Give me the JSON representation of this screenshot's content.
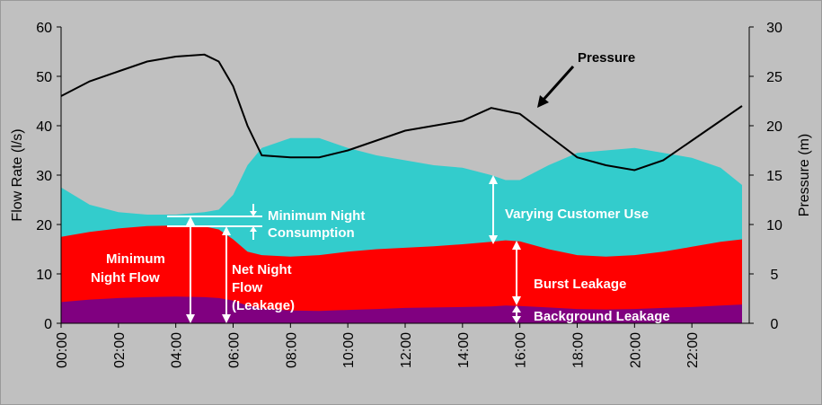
{
  "chart_data": {
    "type": "area",
    "title": "",
    "xlabel": "",
    "ylabel": "Flow Rate (l/s)",
    "y2label": "Pressure (m)",
    "ylim": [
      0,
      60
    ],
    "y2lim": [
      0,
      30
    ],
    "yticks": [
      "0",
      "10",
      "20",
      "30",
      "40",
      "50",
      "60"
    ],
    "y2ticks": [
      "0",
      "5",
      "10",
      "15",
      "20",
      "25",
      "30"
    ],
    "xticks": [
      "00:00",
      "02:00",
      "04:00",
      "06:00",
      "08:00",
      "10:00",
      "12:00",
      "14:00",
      "16:00",
      "18:00",
      "20:00",
      "22:00"
    ],
    "x_hours": [
      0,
      1,
      2,
      3,
      4,
      5,
      5.5,
      6,
      6.5,
      7,
      8,
      9,
      10,
      11,
      12,
      13,
      14,
      15,
      15.5,
      16,
      17,
      18,
      19,
      20,
      21,
      22,
      23,
      23.75
    ],
    "series": [
      {
        "name": "Background Leakage",
        "color": "#800080",
        "values": [
          4.3,
          4.8,
          5.1,
          5.3,
          5.4,
          5.3,
          5.1,
          4.6,
          3.6,
          3.0,
          2.6,
          2.5,
          2.7,
          2.9,
          3.1,
          3.2,
          3.3,
          3.4,
          3.6,
          3.5,
          3.2,
          2.9,
          2.8,
          2.9,
          3.1,
          3.3,
          3.6,
          3.8
        ]
      },
      {
        "name": "Burst Leakage",
        "color": "#ff0000",
        "values": [
          17.5,
          18.5,
          19.2,
          19.7,
          19.8,
          19.6,
          19.0,
          17.0,
          14.5,
          13.8,
          13.5,
          13.8,
          14.5,
          15.0,
          15.3,
          15.6,
          16.0,
          16.5,
          16.8,
          16.6,
          15.0,
          13.8,
          13.5,
          13.8,
          14.5,
          15.5,
          16.5,
          17.0
        ]
      },
      {
        "name": "Varying Customer Use",
        "color": "#33cccc",
        "values": [
          27.5,
          24.0,
          22.5,
          22.0,
          22.0,
          22.5,
          23.0,
          26.0,
          32.0,
          35.5,
          37.5,
          37.5,
          35.5,
          34.0,
          33.0,
          32.0,
          31.5,
          30.0,
          29.0,
          29.0,
          32.0,
          34.5,
          35.0,
          35.5,
          34.5,
          33.5,
          31.5,
          28.0
        ]
      },
      {
        "name": "Pressure",
        "color": "#000000",
        "axis": "y2",
        "values": [
          23.0,
          24.5,
          25.5,
          26.5,
          27.0,
          27.2,
          26.5,
          24.0,
          20.0,
          17.0,
          16.8,
          16.8,
          17.5,
          18.5,
          19.5,
          20.0,
          20.5,
          21.8,
          21.5,
          21.2,
          19.0,
          16.8,
          16.0,
          15.5,
          16.5,
          18.5,
          20.5,
          22.0
        ]
      }
    ],
    "annotations": {
      "pressure": "Pressure",
      "min_night_consumption_line1": "Minimum Night",
      "min_night_consumption_line2": "Consumption",
      "varying_customer_use": "Varying Customer Use",
      "min_night_flow_line1": "Minimum",
      "min_night_flow_line2": "Night Flow",
      "net_night_flow_line1": "Net Night",
      "net_night_flow_line2": "Flow",
      "net_night_flow_line3": "(Leakage)",
      "burst_leakage": "Burst Leakage",
      "background_leakage": "Background Leakage"
    }
  }
}
